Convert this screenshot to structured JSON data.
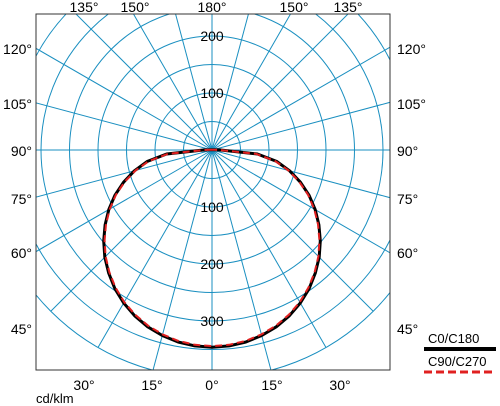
{
  "chart_data": {
    "type": "polar",
    "unit_label": "cd/klm",
    "grid": true,
    "grid_color": "#1a8fc0",
    "radial_ticks": [
      100,
      200,
      300
    ],
    "radial_label_values": [
      "100",
      "200",
      "300"
    ],
    "radial_max": 400,
    "angle_ticks": [
      0,
      15,
      30,
      45,
      60,
      75,
      90,
      105,
      120,
      135,
      150,
      165,
      180
    ],
    "angle_labels": {
      "top": [
        "135°",
        "150°",
        "180°",
        "150°",
        "135°"
      ],
      "left": [
        "120°",
        "105°",
        "90°",
        "75°",
        "60°",
        "45°"
      ],
      "right": [
        "120°",
        "105°",
        "90°",
        "75°",
        "60°",
        "45°"
      ],
      "bottom": [
        "30°",
        "15°",
        "0°",
        "15°",
        "30°"
      ]
    },
    "legend_position": "bottom-right",
    "series": [
      {
        "name": "C0/C180",
        "color": "#000000",
        "line_style": "solid",
        "angles": [
          0,
          5,
          10,
          15,
          20,
          25,
          30,
          35,
          40,
          45,
          50,
          55,
          60,
          65,
          70,
          75,
          80,
          85,
          90,
          95,
          100,
          105,
          110
        ],
        "values": [
          346,
          345,
          342,
          337,
          330,
          321,
          310,
          297,
          282,
          266,
          248,
          229,
          209,
          188,
          165,
          141,
          115,
          80,
          15,
          4,
          3,
          2,
          1
        ]
      },
      {
        "name": "C90/C270",
        "color": "#e02020",
        "line_style": "dashed",
        "angles": [
          0,
          5,
          10,
          15,
          20,
          25,
          30,
          35,
          40,
          45,
          50,
          55,
          60,
          65,
          70,
          75,
          80,
          85,
          90,
          95,
          100,
          105,
          110
        ],
        "values": [
          344,
          343,
          340,
          335,
          328,
          319,
          308,
          295,
          280,
          264,
          246,
          227,
          207,
          186,
          163,
          139,
          113,
          78,
          14,
          4,
          3,
          2,
          1
        ]
      }
    ]
  }
}
